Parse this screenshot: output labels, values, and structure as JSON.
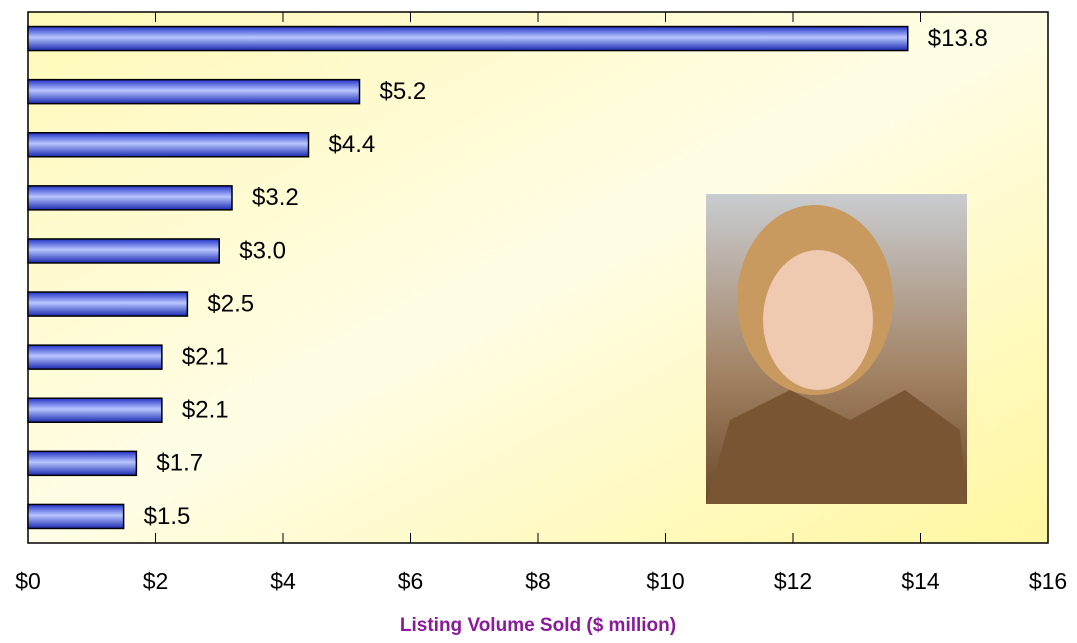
{
  "chart_data": {
    "type": "bar",
    "orientation": "horizontal",
    "categories": [
      null,
      null,
      null,
      null,
      null,
      null,
      null,
      null,
      null,
      null
    ],
    "values": [
      13.8,
      5.2,
      4.4,
      3.2,
      3.0,
      2.5,
      2.1,
      2.1,
      1.7,
      1.5
    ],
    "value_labels": [
      "$13.8",
      "$5.2",
      "$4.4",
      "$3.2",
      "$3.0",
      "$2.5",
      "$2.1",
      "$2.1",
      "$1.7",
      "$1.5"
    ],
    "color": "#3b4fe0",
    "xlim": [
      0,
      16
    ],
    "xticks": [
      {
        "value": 0,
        "label": "$0"
      },
      {
        "value": 2,
        "label": "$2"
      },
      {
        "value": 4,
        "label": "$4"
      },
      {
        "value": 6,
        "label": "$6"
      },
      {
        "value": 8,
        "label": "$8"
      },
      {
        "value": 10,
        "label": "$10"
      },
      {
        "value": 12,
        "label": "$12"
      },
      {
        "value": 14,
        "label": "$14"
      },
      {
        "value": 16,
        "label": "$16"
      }
    ],
    "xlabel": "Listing Volume Sold ($ million)"
  }
}
